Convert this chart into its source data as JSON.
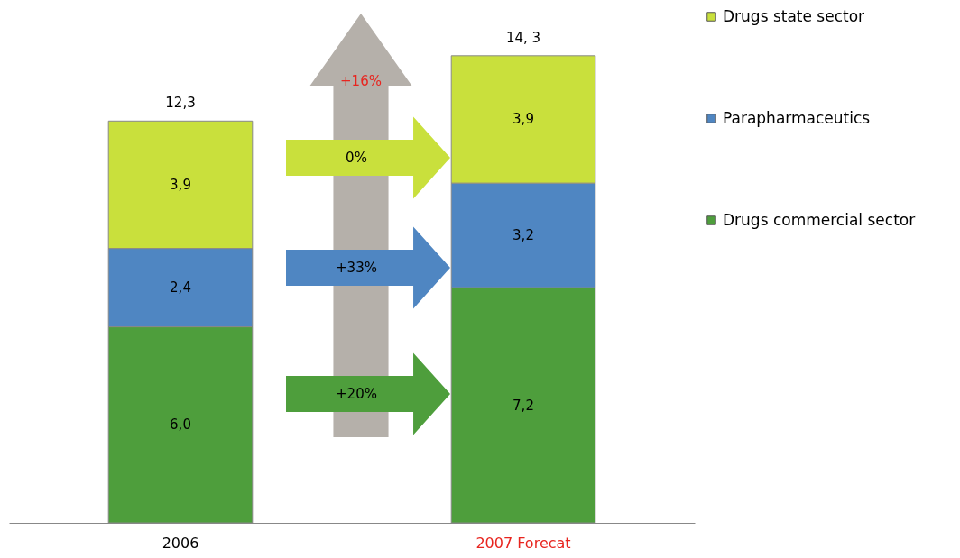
{
  "chart_data": {
    "type": "bar",
    "stacked": true,
    "categories": [
      "2006",
      "2007 Forecat"
    ],
    "series": [
      {
        "name": "Drugs commercial sector",
        "color": "#4e9e3c",
        "values": [
          6.0,
          7.2
        ],
        "value_labels": [
          "6,0",
          "7,2"
        ]
      },
      {
        "name": "Parapharmaceutics",
        "color": "#4f86c2",
        "values": [
          2.4,
          3.2
        ],
        "value_labels": [
          "2,4",
          "3,2"
        ]
      },
      {
        "name": "Drugs state sector",
        "color": "#c9e03c",
        "values": [
          3.9,
          3.9
        ],
        "value_labels": [
          "3,9",
          "3,9"
        ]
      }
    ],
    "totals": [
      "12,3",
      "14, 3"
    ],
    "annotations": [
      "+16%",
      "0%",
      "+33%",
      "+20%"
    ],
    "legend": "right"
  }
}
